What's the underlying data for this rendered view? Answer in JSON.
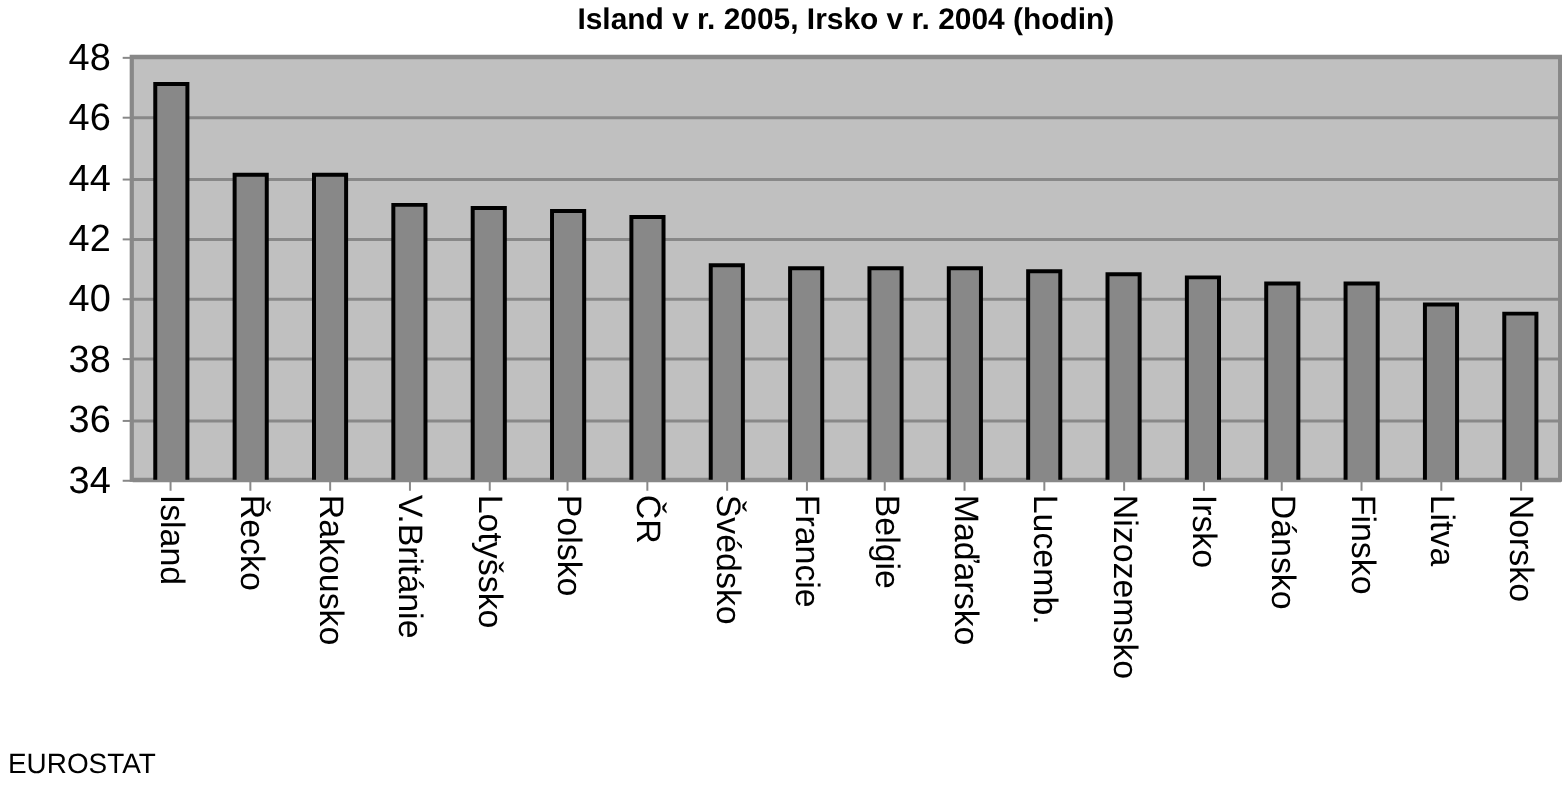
{
  "chart_data": {
    "type": "bar",
    "title": "Island v r. 2005, Irsko v r. 2004 (hodin)",
    "categories": [
      "Island",
      "Řecko",
      "Rakousko",
      "V.Británie",
      "Lotyšsko",
      "Polsko",
      "ČR",
      "Švédsko",
      "Francie",
      "Belgie",
      "Maďarsko",
      "Lucemb.",
      "Nizozemsko",
      "Irsko",
      "Dánsko",
      "Finsko",
      "Litva",
      "Norsko"
    ],
    "values": [
      47.1,
      44.1,
      44.1,
      43.1,
      43.0,
      42.9,
      42.7,
      41.1,
      41.0,
      41.0,
      41.0,
      40.9,
      40.8,
      40.7,
      40.5,
      40.5,
      39.8,
      39.5
    ],
    "color": "#888888",
    "ylim": [
      34,
      48
    ],
    "yticks": [
      34,
      36,
      38,
      40,
      42,
      44,
      46,
      48
    ],
    "grid": "y",
    "annotations": [
      "EUROSTAT"
    ]
  }
}
